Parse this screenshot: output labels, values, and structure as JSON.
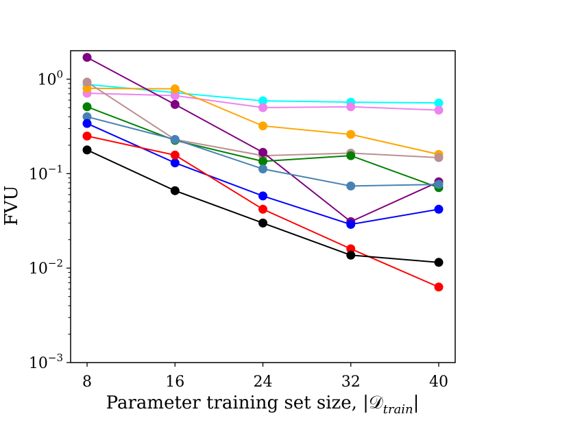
{
  "chart_data": {
    "type": "line",
    "xlabel": "Parameter training set size, |𝒟",
    "xlabel_sub": "train",
    "xlabel_tail": "|",
    "ylabel": "FVU",
    "y_scale": "log",
    "ylim": [
      0.001,
      2
    ],
    "xlim": [
      6.5,
      41.5
    ],
    "x": [
      8,
      16,
      24,
      32,
      40
    ],
    "x_ticks": [
      "8",
      "16",
      "24",
      "32",
      "40"
    ],
    "y_ticks": [
      {
        "value": 1,
        "base": "10",
        "exp": "0"
      },
      {
        "value": 0.1,
        "base": "10",
        "exp": "−1"
      },
      {
        "value": 0.01,
        "base": "10",
        "exp": "−2"
      },
      {
        "value": 0.001,
        "base": "10",
        "exp": "−3"
      }
    ],
    "grid": false,
    "legend": "none",
    "series": [
      {
        "color": "#00ffff",
        "values": [
          0.88,
          0.72,
          0.59,
          0.57,
          0.56
        ]
      },
      {
        "color": "#ee82ee",
        "values": [
          0.71,
          0.67,
          0.5,
          0.51,
          0.47
        ]
      },
      {
        "color": "#ffa500",
        "values": [
          0.8,
          0.79,
          0.32,
          0.26,
          0.16
        ]
      },
      {
        "color": "#bc8f8f",
        "values": [
          0.93,
          0.23,
          0.155,
          0.165,
          0.148
        ]
      },
      {
        "color": "#800080",
        "values": [
          1.7,
          0.54,
          0.168,
          0.031,
          0.082
        ]
      },
      {
        "color": "#008000",
        "values": [
          0.51,
          0.225,
          0.135,
          0.155,
          0.071
        ]
      },
      {
        "color": "#4682b4",
        "values": [
          0.4,
          0.23,
          0.112,
          0.074,
          0.077
        ]
      },
      {
        "color": "#0000ff",
        "values": [
          0.34,
          0.13,
          0.058,
          0.029,
          0.042
        ]
      },
      {
        "color": "#ff0000",
        "values": [
          0.25,
          0.157,
          0.042,
          0.016,
          0.0063
        ]
      },
      {
        "color": "#000000",
        "values": [
          0.178,
          0.066,
          0.03,
          0.0137,
          0.0115
        ]
      }
    ]
  }
}
